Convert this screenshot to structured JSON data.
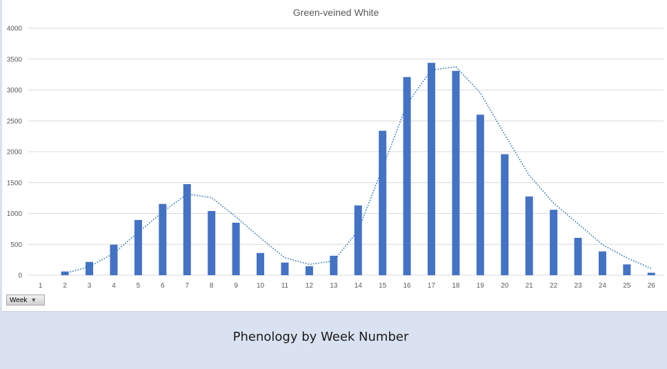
{
  "chart_data": {
    "type": "bar",
    "title": "Green-veined White",
    "xlabel": "",
    "ylabel": "",
    "categories": [
      "1",
      "2",
      "3",
      "4",
      "5",
      "6",
      "7",
      "8",
      "9",
      "10",
      "11",
      "12",
      "13",
      "14",
      "15",
      "16",
      "17",
      "18",
      "19",
      "20",
      "21",
      "22",
      "23",
      "24",
      "25",
      "26"
    ],
    "series": [
      {
        "values": [
          0,
          60,
          215,
          495,
          895,
          1155,
          1475,
          1040,
          850,
          360,
          205,
          145,
          315,
          1130,
          2340,
          3210,
          3440,
          3310,
          2600,
          1960,
          1275,
          1060,
          605,
          385,
          175,
          40
        ]
      }
    ],
    "trendline": {
      "type": "moving-average",
      "style": "dotted",
      "values": [
        null,
        30,
        137,
        355,
        695,
        1025,
        1315,
        1257,
        945,
        605,
        283,
        175,
        230,
        723,
        1735,
        2775,
        3325,
        3375,
        2955,
        2280,
        1618,
        1168,
        833,
        495,
        280,
        108
      ]
    },
    "ylim": [
      0,
      4000
    ],
    "yticks": [
      0,
      500,
      1000,
      1500,
      2000,
      2500,
      3000,
      3500,
      4000
    ],
    "grid": true,
    "legend": "none",
    "colors": {
      "bar": "#4472c4",
      "trendline": "#2e75b6",
      "gridline": "#d9d9d9",
      "text": "#595959"
    }
  },
  "field_button": {
    "label": "Week",
    "icon": "filter-dropdown-icon"
  },
  "caption": "Phenology by Week Number"
}
